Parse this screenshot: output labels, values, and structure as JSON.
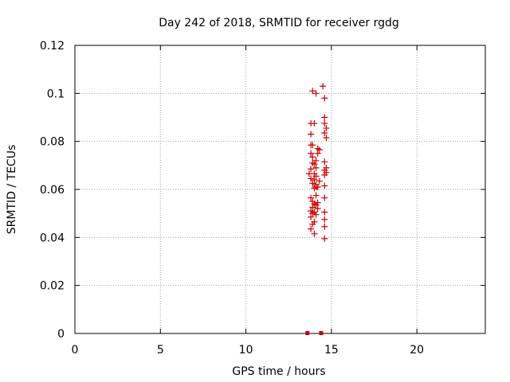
{
  "chart_data": {
    "type": "scatter",
    "title": "Day 242 of 2018, SRMTID for receiver rgdg",
    "xlabel": "GPS time / hours",
    "ylabel": "SRMTID / TECUs",
    "xlim": [
      0,
      24
    ],
    "ylim": [
      0,
      0.12
    ],
    "x_ticks": [
      0,
      5,
      10,
      15,
      20
    ],
    "x_tick_labels": [
      "0",
      "5",
      "10",
      "15",
      "20"
    ],
    "y_ticks": [
      0,
      0.02,
      0.04,
      0.06,
      0.08,
      0.1,
      0.12
    ],
    "y_tick_labels": [
      "0",
      "0.02",
      "0.04",
      "0.06",
      "0.08",
      "0.1",
      "0.12"
    ],
    "grid": true,
    "marker": "plus",
    "series_color": "#cc0000",
    "x": [
      13.9,
      14.1,
      14.5,
      14.6,
      13.8,
      14.0,
      14.6,
      14.6,
      14.7,
      13.8,
      14.6,
      14.7,
      13.8,
      13.9,
      14.2,
      14.3,
      13.8,
      14.2,
      13.9,
      14.1,
      14.6,
      13.9,
      14.0,
      14.7,
      14.1,
      13.8,
      14.6,
      14.7,
      13.7,
      14.0,
      14.6,
      14.1,
      13.8,
      14.0,
      14.3,
      13.9,
      14.1,
      14.6,
      14.1,
      14.2,
      14.0,
      14.1,
      13.8,
      14.6,
      13.9,
      14.2,
      14.0,
      14.1,
      13.9,
      14.2,
      13.8,
      14.0,
      14.6,
      13.9,
      14.1,
      13.8,
      14.6,
      14.0,
      13.9,
      14.6,
      13.8,
      14.0,
      14.6
    ],
    "y": [
      0.101,
      0.1,
      0.103,
      0.098,
      0.0875,
      0.0875,
      0.09,
      0.0875,
      0.0855,
      0.083,
      0.0835,
      0.0815,
      0.0785,
      0.0785,
      0.077,
      0.0765,
      0.075,
      0.075,
      0.0735,
      0.072,
      0.0715,
      0.071,
      0.0705,
      0.069,
      0.069,
      0.0685,
      0.068,
      0.067,
      0.0665,
      0.0665,
      0.066,
      0.0655,
      0.0645,
      0.064,
      0.0635,
      0.0625,
      0.062,
      0.0615,
      0.061,
      0.061,
      0.0605,
      0.0575,
      0.0565,
      0.0565,
      0.055,
      0.0545,
      0.054,
      0.0535,
      0.0525,
      0.052,
      0.051,
      0.0505,
      0.0505,
      0.05,
      0.0495,
      0.0485,
      0.0475,
      0.0465,
      0.0455,
      0.0445,
      0.0435,
      0.0415,
      0.0395
    ],
    "x_axis_marks": [
      13.6,
      14.4
    ]
  }
}
